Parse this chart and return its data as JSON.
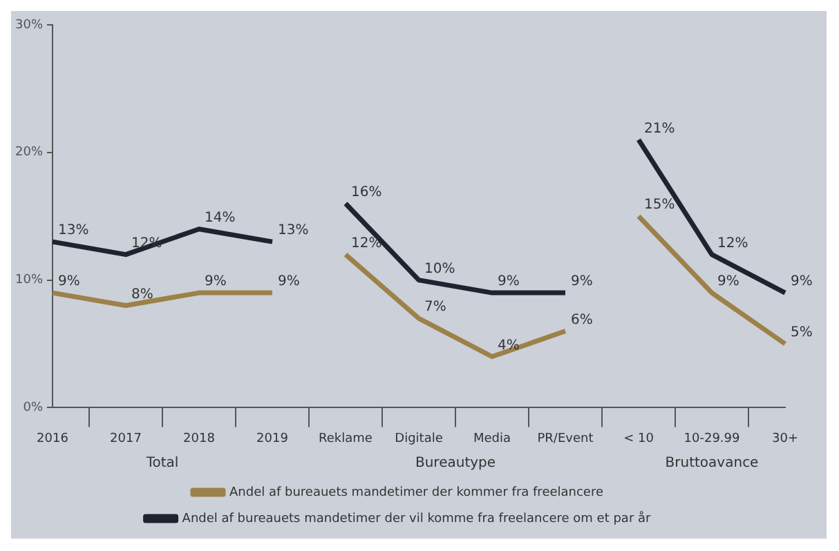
{
  "chart_data": {
    "type": "line",
    "categories": [
      "2016",
      "2017",
      "2018",
      "2019",
      "Reklame",
      "Digitale",
      "Media",
      "PR/Event",
      "< 10",
      "10-29.99",
      "30+"
    ],
    "series": [
      {
        "name": "Andel af bureauets mandetimer der kommer fra freelancere",
        "color": "#9c8148",
        "values": [
          9,
          8,
          9,
          9,
          null,
          null,
          null,
          null,
          null,
          null,
          null
        ],
        "value_labels": [
          "9%",
          "8%",
          "9%",
          "9%",
          null,
          null,
          null,
          null,
          null,
          null,
          null
        ]
      },
      {
        "name": "Andel af bureauets mandetimer der vil komme fra freelancere om et par år",
        "color": "#1f2330",
        "values": [
          13,
          12,
          14,
          13,
          null,
          null,
          null,
          null,
          null,
          null,
          null
        ],
        "value_labels": [
          "13%",
          "12%",
          "14%",
          "13%",
          null,
          null,
          null,
          null,
          null,
          null,
          null
        ]
      },
      {
        "color": "#9c8148",
        "values": [
          null,
          null,
          null,
          null,
          12,
          7,
          4,
          6,
          null,
          null,
          null
        ],
        "value_labels": [
          null,
          null,
          null,
          null,
          "12%",
          "7%",
          "4%",
          "6%",
          null,
          null,
          null
        ]
      },
      {
        "color": "#1f2330",
        "values": [
          null,
          null,
          null,
          null,
          16,
          10,
          9,
          9,
          null,
          null,
          null
        ],
        "value_labels": [
          null,
          null,
          null,
          null,
          "16%",
          "10%",
          "9%",
          "9%",
          null,
          null,
          null
        ]
      },
      {
        "color": "#9c8148",
        "values": [
          null,
          null,
          null,
          null,
          null,
          null,
          null,
          null,
          15,
          9,
          5
        ],
        "value_labels": [
          null,
          null,
          null,
          null,
          null,
          null,
          null,
          null,
          "15%",
          "9%",
          "5%"
        ]
      },
      {
        "color": "#1f2330",
        "values": [
          null,
          null,
          null,
          null,
          null,
          null,
          null,
          null,
          21,
          12,
          9
        ],
        "value_labels": [
          null,
          null,
          null,
          null,
          null,
          null,
          null,
          null,
          "21%",
          "12%",
          "9%"
        ]
      }
    ],
    "annotations": [
      "Total",
      "Bureautype",
      "Bruttoavance"
    ],
    "ylim": [
      0,
      30
    ],
    "yticks": [
      {
        "value": 0,
        "label": "0%"
      },
      {
        "value": 10,
        "label": "10%"
      },
      {
        "value": 20,
        "label": "20%"
      },
      {
        "value": 30,
        "label": "30%"
      }
    ],
    "grid": false,
    "legend": "bottom",
    "marker": "none",
    "line_style": "solid"
  }
}
